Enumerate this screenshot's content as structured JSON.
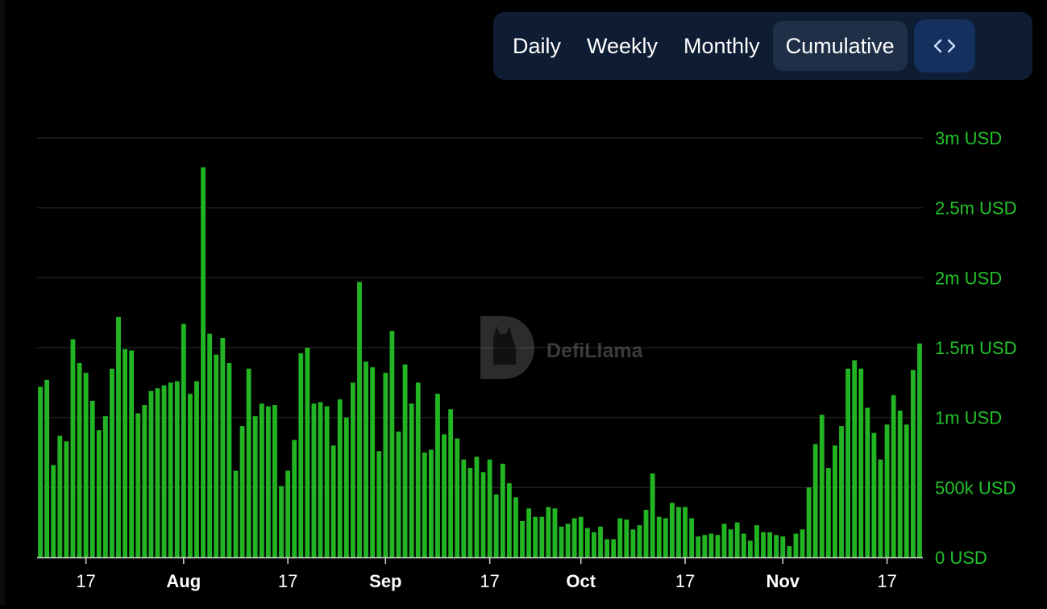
{
  "toolbar": {
    "tabs": [
      {
        "label": "Daily",
        "active": false
      },
      {
        "label": "Weekly",
        "active": false
      },
      {
        "label": "Monthly",
        "active": false
      },
      {
        "label": "Cumulative",
        "active": true
      }
    ],
    "embed_icon": "code-brackets-icon"
  },
  "watermark": {
    "text": "DefiLlama",
    "icon": "llama-logo-icon"
  },
  "colors": {
    "bar": "#22b422",
    "axis_label": "#22c22a",
    "grid": "#1e1e1e",
    "tick_label": "#ffffff",
    "toolbar_bg": "#0e1d33",
    "active_tab_bg": "#1f2f48",
    "embed_bg": "#13305e"
  },
  "chart_data": {
    "type": "bar",
    "ylim": [
      0,
      3000000
    ],
    "y_ticks": [
      0,
      500000,
      1000000,
      1500000,
      2000000,
      2500000,
      3000000
    ],
    "y_tick_labels": [
      "0 USD",
      "500k USD",
      "1m USD",
      "1.5m USD",
      "2m USD",
      "2.5m USD",
      "3m USD"
    ],
    "x_tick_labels": [
      {
        "label": "17",
        "bold": false,
        "index": 7
      },
      {
        "label": "Aug",
        "bold": true,
        "index": 22
      },
      {
        "label": "17",
        "bold": false,
        "index": 38
      },
      {
        "label": "Sep",
        "bold": true,
        "index": 53
      },
      {
        "label": "17",
        "bold": false,
        "index": 69
      },
      {
        "label": "Oct",
        "bold": true,
        "index": 83
      },
      {
        "label": "17",
        "bold": false,
        "index": 99
      },
      {
        "label": "Nov",
        "bold": true,
        "index": 114
      },
      {
        "label": "17",
        "bold": false,
        "index": 130
      }
    ],
    "grid": true,
    "series": [
      {
        "values": [
          1220000,
          1270000,
          660000,
          870000,
          830000,
          1560000,
          1390000,
          1320000,
          1120000,
          910000,
          1010000,
          1350000,
          1720000,
          1490000,
          1480000,
          1030000,
          1090000,
          1190000,
          1210000,
          1230000,
          1250000,
          1260000,
          1670000,
          1170000,
          1260000,
          2790000,
          1600000,
          1450000,
          1570000,
          1390000,
          620000,
          940000,
          1350000,
          1010000,
          1100000,
          1080000,
          1090000,
          510000,
          620000,
          840000,
          1460000,
          1500000,
          1100000,
          1110000,
          1080000,
          800000,
          1130000,
          1000000,
          1250000,
          1970000,
          1400000,
          1360000,
          760000,
          1320000,
          1620000,
          900000,
          1380000,
          1100000,
          1250000,
          750000,
          770000,
          1170000,
          880000,
          1060000,
          850000,
          700000,
          640000,
          720000,
          610000,
          700000,
          450000,
          670000,
          530000,
          430000,
          260000,
          350000,
          290000,
          290000,
          360000,
          350000,
          220000,
          240000,
          280000,
          290000,
          210000,
          180000,
          220000,
          130000,
          130000,
          280000,
          270000,
          200000,
          230000,
          340000,
          600000,
          290000,
          280000,
          390000,
          360000,
          360000,
          280000,
          150000,
          160000,
          170000,
          160000,
          240000,
          200000,
          250000,
          170000,
          120000,
          230000,
          180000,
          180000,
          160000,
          150000,
          80000,
          170000,
          200000,
          500000,
          810000,
          1020000,
          640000,
          800000,
          940000,
          1350000,
          1410000,
          1350000,
          1070000,
          890000,
          700000,
          950000,
          1160000,
          1050000,
          950000,
          1340000,
          1530000
        ]
      }
    ]
  }
}
